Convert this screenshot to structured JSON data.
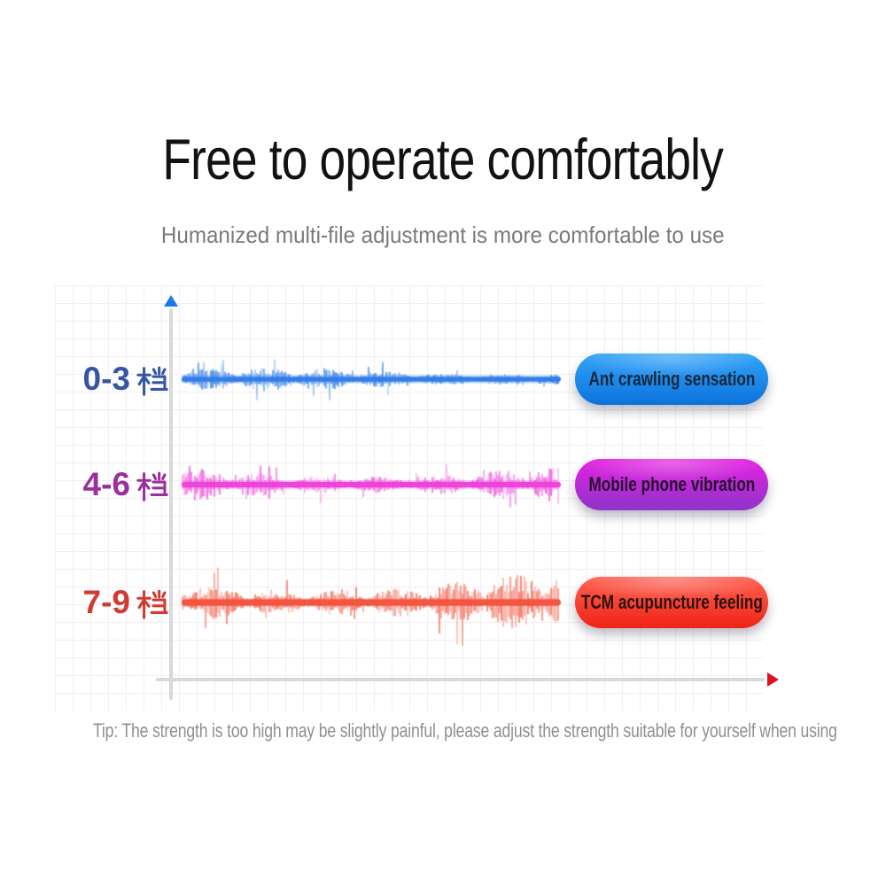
{
  "page": {
    "title": "Free to operate comfortably",
    "subtitle": "Humanized multi-file adjustment is more comfortable to use",
    "tip": "Tip: The strength is too high may be slightly painful, please adjust the strength suitable for yourself when using"
  },
  "colors": {
    "title_text": "#121212",
    "subtitle_text": "#7a7a7a",
    "tip_text": "#8f8f8f",
    "grid_line": "#f2eef1",
    "axis_line": "#d8d8dd",
    "y_arrow": "#1a79e9",
    "x_arrow": "#df0f1f"
  },
  "rows": [
    {
      "label": "0-3 档",
      "label_prefix": "0-3",
      "han_suffix": "档",
      "label_color": "#3456a4",
      "button_label": "Ant crawling sensation",
      "button_gradient_top": "#31a3f8",
      "button_gradient_bottom": "#0c72dc",
      "button_text_color": "#17273a",
      "wave_center_color": "#2e7ce7",
      "wave_tip_top": "#a9cdf8",
      "wave_tip_bottom": "#a9cdf8",
      "amplitude": 13,
      "spike": 23,
      "seed": 7
    },
    {
      "label": "4-6 档",
      "label_prefix": "4-6",
      "han_suffix": "档",
      "label_color": "#9b2f9e",
      "button_label": "Mobile phone vibration",
      "button_gradient_top": "#e620e2",
      "button_gradient_bottom": "#8e34c9",
      "button_text_color": "#25112e",
      "wave_center_color": "#ee3fd8",
      "wave_tip_top": "#ef52e0",
      "wave_tip_bottom": "#9055e2",
      "amplitude": 21,
      "spike": 46,
      "seed": 13
    },
    {
      "label": "7-9 档",
      "label_prefix": "7-9",
      "han_suffix": "档",
      "label_color": "#d23a31",
      "button_label": "TCM acupuncture feeling",
      "button_gradient_top": "#ff6253",
      "button_gradient_bottom": "#ef2315",
      "button_text_color": "#2b130e",
      "wave_center_color": "#f2513c",
      "wave_tip_top": "#f0675a",
      "wave_tip_bottom": "#f79a63",
      "amplitude": 32,
      "spike": 66,
      "seed": 21
    }
  ],
  "chart_data": {
    "type": "line",
    "subtype": "vibration-waveform-levels",
    "title": "Free to operate comfortably",
    "categories": [
      "0-3 档",
      "4-6 档",
      "7-9 档"
    ],
    "series": [
      {
        "name": "0-3 档",
        "label": "Ant crawling sensation",
        "relative_intensity": 1,
        "color": "#2e7ce7"
      },
      {
        "name": "4-6 档",
        "label": "Mobile phone vibration",
        "relative_intensity": 2,
        "color": "#ee3fd8"
      },
      {
        "name": "7-9 档",
        "label": "TCM acupuncture feeling",
        "relative_intensity": 3,
        "color": "#f2513c"
      }
    ],
    "xlabel": "",
    "ylabel": "",
    "grid": true,
    "legend": "none",
    "axes": {
      "y_arrow_color": "#1a79e9",
      "x_arrow_color": "#df0f1f"
    }
  }
}
